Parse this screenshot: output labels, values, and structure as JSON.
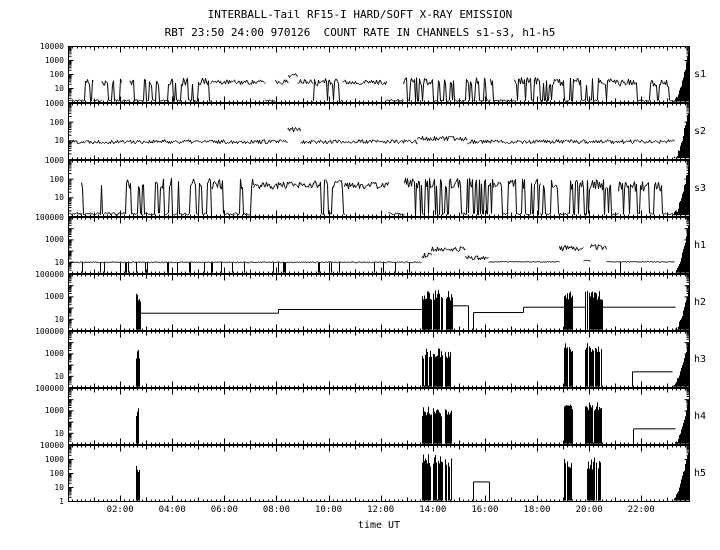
{
  "title": "INTERBALL-Tail RF15-I HARD/SOFT X-RAY EMISSION",
  "subtitle": "RBT 23:50 24:00 970126  COUNT RATE IN CHANNELS s1-s3, h1-h5",
  "xlabel": "time UT",
  "chart_data": {
    "type": "line",
    "y_scale": "log",
    "grid": false,
    "legend": "none",
    "x_unit": "hours UT",
    "x_range": [
      0,
      23.8333
    ],
    "x_tick_hours": [
      2,
      4,
      6,
      8,
      10,
      12,
      14,
      16,
      18,
      20,
      22
    ],
    "x_tick_labels": [
      "02:00",
      "04:00",
      "06:00",
      "08:00",
      "10:00",
      "12:00",
      "14:00",
      "16:00",
      "18:00",
      "20:00",
      "22:00"
    ],
    "panels": [
      {
        "label": "s1",
        "ylim": [
          1,
          10000
        ],
        "yticks": [
          10000,
          1000,
          100,
          10
        ],
        "seed": 11,
        "segments": [
          {
            "t": [
              0,
              0.55
            ],
            "type": "bottom"
          },
          {
            "t": [
              0.55,
              0.95
            ],
            "type": "bursty",
            "lv": 30,
            "tg": 0.2
          },
          {
            "t": [
              0.95,
              1.25
            ],
            "type": "bottom"
          },
          {
            "t": [
              1.25,
              2.05
            ],
            "type": "bursty",
            "lv": 30,
            "tg": 0.22
          },
          {
            "t": [
              2.05,
              2.35
            ],
            "type": "bottom"
          },
          {
            "t": [
              2.35,
              5.45
            ],
            "type": "bursty",
            "lv": 30,
            "tg": 0.22
          },
          {
            "t": [
              5.45,
              7.55
            ],
            "type": "noise",
            "lv": 28,
            "sp": 0.35
          },
          {
            "t": [
              7.55,
              7.95
            ],
            "type": "bottom"
          },
          {
            "t": [
              7.95,
              8.45
            ],
            "type": "noise",
            "lv": 30,
            "sp": 0.35
          },
          {
            "t": [
              8.45,
              8.8
            ],
            "type": "noise",
            "lv": 85,
            "sp": 0.3
          },
          {
            "t": [
              8.8,
              9.35
            ],
            "type": "noise",
            "lv": 33,
            "sp": 0.35
          },
          {
            "t": [
              9.35,
              10.5
            ],
            "type": "bursty",
            "lv": 28,
            "tg": 0.15
          },
          {
            "t": [
              10.5,
              12.2
            ],
            "type": "noise",
            "lv": 28,
            "sp": 0.35
          },
          {
            "t": [
              12.2,
              12.85
            ],
            "type": "bottom"
          },
          {
            "t": [
              12.85,
              16.2
            ],
            "type": "bursty",
            "lv": 33,
            "tg": 0.25
          },
          {
            "t": [
              16.2,
              17.1
            ],
            "type": "bursty",
            "lv": 30,
            "tg": 0.12
          },
          {
            "t": [
              17.1,
              18.1
            ],
            "type": "bursty",
            "lv": 33,
            "tg": 0.22
          },
          {
            "t": [
              18.1,
              21.0
            ],
            "type": "bursty",
            "lv": 30,
            "tg": 0.18
          },
          {
            "t": [
              21.0,
              23.25
            ],
            "type": "bursty",
            "lv": 25,
            "tg": 0.1
          },
          {
            "t": [
              23.25,
              23.83
            ],
            "type": "spike",
            "pk": 8000
          }
        ]
      },
      {
        "label": "s2",
        "ylim": [
          1,
          1000
        ],
        "yticks": [
          1000,
          100,
          10
        ],
        "seed": 22,
        "segments": [
          {
            "t": [
              0,
              8.4
            ],
            "type": "noise",
            "lv": 9,
            "sp": 0.22
          },
          {
            "t": [
              8.4,
              8.9
            ],
            "type": "noise",
            "lv": 40,
            "sp": 0.3
          },
          {
            "t": [
              8.9,
              13.4
            ],
            "type": "noise",
            "lv": 9,
            "sp": 0.22
          },
          {
            "t": [
              13.4,
              15.3
            ],
            "type": "noise",
            "lv": 13,
            "sp": 0.26
          },
          {
            "t": [
              15.3,
              23.25
            ],
            "type": "noise",
            "lv": 9,
            "sp": 0.22
          },
          {
            "t": [
              23.25,
              23.83
            ],
            "type": "spike",
            "pk": 700
          }
        ]
      },
      {
        "label": "s3",
        "ylim": [
          1,
          1000
        ],
        "yticks": [
          1000,
          100,
          10
        ],
        "seed": 33,
        "segments": [
          {
            "t": [
              0,
              0.5
            ],
            "type": "bottom"
          },
          {
            "t": [
              0.5,
              0.85
            ],
            "type": "bursty",
            "lv": 55,
            "tg": 0.2
          },
          {
            "t": [
              0.85,
              1.1
            ],
            "type": "bottom"
          },
          {
            "t": [
              1.1,
              1.4
            ],
            "type": "bursty",
            "lv": 55,
            "tg": 0.2
          },
          {
            "t": [
              1.4,
              2.2
            ],
            "type": "bottom"
          },
          {
            "t": [
              2.2,
              5.5
            ],
            "type": "bursty",
            "lv": 60,
            "tg": 0.24
          },
          {
            "t": [
              5.5,
              7.1
            ],
            "type": "bursty",
            "lv": 55,
            "tg": 0.18
          },
          {
            "t": [
              7.1,
              9.4
            ],
            "type": "noise",
            "lv": 45,
            "sp": 0.4
          },
          {
            "t": [
              9.4,
              10.6
            ],
            "type": "bursty",
            "lv": 50,
            "tg": 0.16
          },
          {
            "t": [
              10.6,
              12.3
            ],
            "type": "noise",
            "lv": 45,
            "sp": 0.4
          },
          {
            "t": [
              12.3,
              12.9
            ],
            "type": "bottom"
          },
          {
            "t": [
              12.9,
              16.3
            ],
            "type": "bursty",
            "lv": 60,
            "tg": 0.25
          },
          {
            "t": [
              16.3,
              18.1
            ],
            "type": "bursty",
            "lv": 55,
            "tg": 0.2
          },
          {
            "t": [
              18.1,
              21.1
            ],
            "type": "bursty",
            "lv": 50,
            "tg": 0.18
          },
          {
            "t": [
              21.1,
              23.25
            ],
            "type": "bursty",
            "lv": 40,
            "tg": 0.12
          },
          {
            "t": [
              23.25,
              23.83
            ],
            "type": "spike",
            "pk": 800
          }
        ]
      },
      {
        "label": "h1",
        "ylim": [
          1,
          100000
        ],
        "yticks": [
          100000,
          1000,
          10
        ],
        "seed": 44,
        "segments": [
          {
            "t": [
              0,
              13.55
            ],
            "type": "flat",
            "lv": 10,
            "dr": 0.08
          },
          {
            "t": [
              13.55,
              13.95
            ],
            "type": "noise",
            "lv": 40,
            "sp": 0.5
          },
          {
            "t": [
              13.95,
              15.25
            ],
            "type": "noise",
            "lv": 160,
            "sp": 0.5
          },
          {
            "t": [
              15.25,
              16.1
            ],
            "type": "noise",
            "lv": 25,
            "sp": 0.4
          },
          {
            "t": [
              16.1,
              18.85
            ],
            "type": "flat",
            "lv": 11,
            "dr": 0.02
          },
          {
            "t": [
              18.85,
              19.75
            ],
            "type": "noise",
            "lv": 180,
            "sp": 0.5
          },
          {
            "t": [
              19.75,
              20.05
            ],
            "type": "flat",
            "lv": 14
          },
          {
            "t": [
              20.05,
              20.65
            ],
            "type": "noise",
            "lv": 220,
            "sp": 0.5
          },
          {
            "t": [
              20.65,
              23.25
            ],
            "type": "flat",
            "lv": 11,
            "dr": 0.01
          },
          {
            "t": [
              23.25,
              23.83
            ],
            "type": "spike",
            "pk": 40000
          }
        ]
      },
      {
        "label": "h2",
        "ylim": [
          1,
          100000
        ],
        "yticks": [
          100000,
          1000,
          10
        ],
        "seed": 55,
        "segments": [
          {
            "t": [
              2.62,
              2.78
            ],
            "type": "burst",
            "lv": 1500
          },
          {
            "t": [
              2.78,
              8.05
            ],
            "type": "step",
            "lv": 35
          },
          {
            "t": [
              8.05,
              13.6
            ],
            "type": "step",
            "lv": 75
          },
          {
            "t": [
              13.6,
              13.95
            ],
            "type": "burst",
            "lv": 2500
          },
          {
            "t": [
              14.02,
              14.35
            ],
            "type": "burst",
            "lv": 2500
          },
          {
            "t": [
              14.45,
              14.75
            ],
            "type": "burst",
            "lv": 2000
          },
          {
            "t": [
              14.75,
              15.35
            ],
            "type": "step",
            "lv": 160
          },
          {
            "t": [
              15.55,
              17.45
            ],
            "type": "step",
            "lv": 40
          },
          {
            "t": [
              17.45,
              19.05
            ],
            "type": "step",
            "lv": 120
          },
          {
            "t": [
              19.05,
              19.35
            ],
            "type": "burst",
            "lv": 2500
          },
          {
            "t": [
              19.35,
              19.85
            ],
            "type": "step",
            "lv": 120
          },
          {
            "t": [
              19.85,
              20.5
            ],
            "type": "burst",
            "lv": 2500
          },
          {
            "t": [
              20.5,
              23.3
            ],
            "type": "step",
            "lv": 120
          },
          {
            "t": [
              23.3,
              23.83
            ],
            "type": "spike",
            "pk": 9000
          }
        ]
      },
      {
        "label": "h3",
        "ylim": [
          1,
          100000
        ],
        "yticks": [
          100000,
          1000,
          10
        ],
        "seed": 66,
        "segments": [
          {
            "t": [
              2.62,
              2.74
            ],
            "type": "burst",
            "lv": 1800
          },
          {
            "t": [
              13.6,
              13.95
            ],
            "type": "burst",
            "lv": 1800
          },
          {
            "t": [
              14.02,
              14.35
            ],
            "type": "burst",
            "lv": 1800
          },
          {
            "t": [
              14.45,
              14.7
            ],
            "type": "burst",
            "lv": 1200
          },
          {
            "t": [
              19.05,
              19.35
            ],
            "type": "burst",
            "lv": 7000
          },
          {
            "t": [
              19.85,
              20.45
            ],
            "type": "burst",
            "lv": 7000
          },
          {
            "t": [
              21.65,
              23.2
            ],
            "type": "step",
            "lv": 25
          },
          {
            "t": [
              23.2,
              23.83
            ],
            "type": "spike",
            "pk": 30000
          }
        ]
      },
      {
        "label": "h4",
        "ylim": [
          1,
          100000
        ],
        "yticks": [
          100000,
          1000,
          10
        ],
        "seed": 77,
        "segments": [
          {
            "t": [
              2.62,
              2.74
            ],
            "type": "burst",
            "lv": 1500
          },
          {
            "t": [
              13.6,
              13.95
            ],
            "type": "burst",
            "lv": 1500
          },
          {
            "t": [
              14.02,
              14.35
            ],
            "type": "burst",
            "lv": 1500
          },
          {
            "t": [
              14.45,
              14.7
            ],
            "type": "burst",
            "lv": 1000
          },
          {
            "t": [
              19.05,
              19.35
            ],
            "type": "burst",
            "lv": 5000
          },
          {
            "t": [
              19.85,
              20.45
            ],
            "type": "burst",
            "lv": 5000
          },
          {
            "t": [
              21.7,
              23.3
            ],
            "type": "step",
            "lv": 25
          },
          {
            "t": [
              23.3,
              23.83
            ],
            "type": "spike",
            "pk": 30000
          }
        ]
      },
      {
        "label": "h5",
        "ylim": [
          1,
          10000
        ],
        "yticks": [
          10000,
          1000,
          100,
          10,
          1
        ],
        "seed": 88,
        "segments": [
          {
            "t": [
              2.62,
              2.72
            ],
            "type": "burst",
            "lv": 400
          },
          {
            "t": [
              13.6,
              13.95
            ],
            "type": "burst",
            "lv": 1500
          },
          {
            "t": [
              14.02,
              14.35
            ],
            "type": "burst",
            "lv": 1500
          },
          {
            "t": [
              14.45,
              14.7
            ],
            "type": "burst",
            "lv": 800
          },
          {
            "t": [
              15.55,
              16.15
            ],
            "type": "step",
            "lv": 25
          },
          {
            "t": [
              19.05,
              19.3
            ],
            "type": "burst",
            "lv": 900
          },
          {
            "t": [
              19.9,
              20.4
            ],
            "type": "burst",
            "lv": 900
          },
          {
            "t": [
              23.2,
              23.83
            ],
            "type": "spike",
            "pk": 8000
          }
        ]
      }
    ]
  }
}
